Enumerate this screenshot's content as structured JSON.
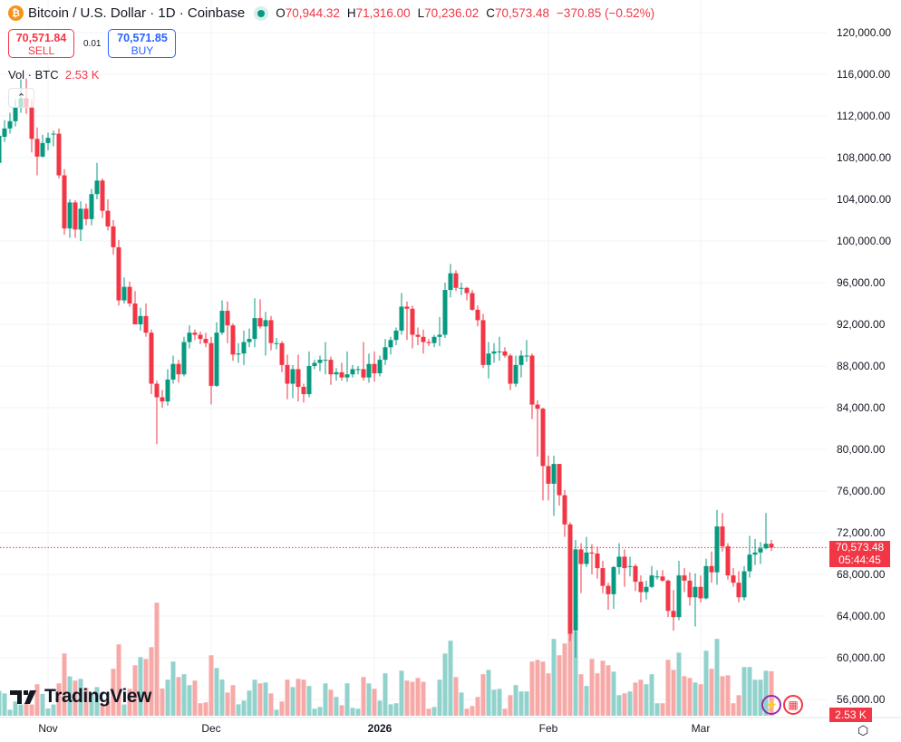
{
  "header": {
    "symbol_icon": "bitcoin-icon",
    "title": "Bitcoin / U.S. Dollar · 1D · Coinbase",
    "market_status": "open",
    "o_label": "O",
    "o": "70,944.32",
    "h_label": "H",
    "h": "71,316.00",
    "l_label": "L",
    "l": "70,236.02",
    "c_label": "C",
    "c": "70,573.48",
    "change": "−370.85 (−0.52%)"
  },
  "trade": {
    "sell_price": "70,571.84",
    "sell_label": "SELL",
    "spread": "0.01",
    "buy_price": "70,571.85",
    "buy_label": "BUY"
  },
  "volume_legend": {
    "label": "Vol · BTC",
    "value": "2.53 K"
  },
  "price_axis": {
    "labels": [
      "120,000.00",
      "116,000.00",
      "112,000.00",
      "108,000.00",
      "104,000.00",
      "100,000.00",
      "96,000.00",
      "92,000.00",
      "88,000.00",
      "84,000.00",
      "80,000.00",
      "76,000.00",
      "72,000.00",
      "68,000.00",
      "64,000.00",
      "60,000.00",
      "56,000.00"
    ],
    "current_price": "70,573.48",
    "countdown": "05:44:45",
    "volume_tag": "2.53 K"
  },
  "time_axis": {
    "labels": [
      "Nov",
      "Dec",
      "2026",
      "Feb",
      "Mar"
    ]
  },
  "brand": "TradingView",
  "colors": {
    "up": "#089981",
    "down": "#f23645",
    "up_volume": "#92d2cc",
    "down_volume": "#f7a9a7"
  },
  "chart_data": {
    "type": "candlestick",
    "interval": "1D",
    "ylim": [
      54000,
      122000
    ],
    "current_price": 70573.48,
    "ohlc": [
      [
        107.5,
        110.8,
        106.5,
        110.1
      ],
      [
        110.0,
        111.6,
        109.5,
        110.8
      ],
      [
        110.8,
        112.3,
        110.3,
        111.5
      ],
      [
        111.5,
        113.6,
        111.0,
        112.8
      ],
      [
        112.8,
        115.5,
        112.3,
        113.7
      ],
      [
        113.7,
        115.6,
        112.2,
        112.8
      ],
      [
        112.8,
        113.6,
        108.5,
        109.8
      ],
      [
        109.8,
        110.9,
        106.3,
        108.1
      ],
      [
        108.1,
        110.2,
        108.0,
        109.4
      ],
      [
        109.4,
        110.4,
        108.7,
        109.9
      ],
      [
        110.3,
        110.6,
        109.1,
        110.3
      ],
      [
        110.3,
        110.8,
        106.0,
        106.3
      ],
      [
        106.3,
        106.9,
        100.6,
        101.2
      ],
      [
        101.2,
        104.0,
        100.3,
        103.7
      ],
      [
        103.7,
        103.9,
        100.3,
        101.1
      ],
      [
        101.1,
        103.8,
        100.0,
        103.1
      ],
      [
        103.1,
        103.6,
        101.5,
        102.1
      ],
      [
        102.1,
        105.0,
        101.5,
        104.5
      ],
      [
        104.5,
        107.5,
        104.0,
        105.8
      ],
      [
        105.8,
        106.0,
        102.2,
        102.9
      ],
      [
        102.9,
        104.0,
        101.0,
        101.4
      ],
      [
        101.4,
        102.0,
        98.7,
        99.4
      ],
      [
        99.4,
        100.1,
        93.8,
        94.3
      ],
      [
        94.3,
        96.5,
        94.0,
        95.6
      ],
      [
        95.6,
        96.1,
        93.7,
        94.0
      ],
      [
        94.0,
        95.2,
        92.0,
        92.0
      ],
      [
        92.0,
        93.6,
        91.4,
        92.8
      ],
      [
        92.8,
        94.0,
        90.8,
        91.2
      ],
      [
        91.2,
        91.5,
        85.3,
        86.3
      ],
      [
        86.3,
        86.6,
        80.5,
        85.0
      ],
      [
        85.0,
        85.7,
        84.0,
        84.6
      ],
      [
        84.6,
        87.7,
        84.2,
        86.7
      ],
      [
        86.7,
        89.0,
        86.3,
        88.2
      ],
      [
        88.2,
        88.6,
        86.4,
        87.2
      ],
      [
        87.2,
        90.8,
        87.0,
        90.3
      ],
      [
        90.3,
        91.9,
        89.7,
        91.2
      ],
      [
        91.2,
        91.5,
        90.5,
        91.0
      ],
      [
        91.0,
        91.3,
        90.1,
        90.6
      ],
      [
        90.6,
        91.2,
        89.8,
        90.2
      ],
      [
        90.2,
        90.8,
        84.3,
        86.1
      ],
      [
        86.1,
        92.2,
        86.0,
        91.2
      ],
      [
        91.2,
        94.3,
        91.0,
        93.3
      ],
      [
        93.3,
        94.2,
        90.2,
        91.9
      ],
      [
        91.9,
        92.1,
        88.5,
        89.1
      ],
      [
        89.1,
        90.2,
        88.3,
        89.2
      ],
      [
        89.2,
        91.4,
        88.1,
        90.3
      ],
      [
        90.3,
        91.6,
        89.8,
        90.6
      ],
      [
        90.6,
        94.5,
        89.8,
        92.6
      ],
      [
        92.6,
        94.4,
        91.6,
        91.8
      ],
      [
        91.8,
        93.2,
        89.0,
        92.4
      ],
      [
        92.4,
        92.8,
        89.5,
        90.2
      ],
      [
        90.2,
        90.7,
        89.6,
        90.2
      ],
      [
        90.2,
        90.4,
        87.4,
        88.1
      ],
      [
        88.1,
        89.1,
        84.8,
        86.3
      ],
      [
        86.3,
        88.1,
        84.9,
        87.7
      ],
      [
        87.7,
        89.1,
        84.6,
        86.0
      ],
      [
        86.0,
        86.3,
        84.5,
        85.3
      ],
      [
        85.3,
        89.4,
        85.0,
        88.0
      ],
      [
        88.0,
        88.6,
        87.7,
        88.3
      ],
      [
        88.3,
        89.0,
        87.5,
        88.6
      ],
      [
        88.6,
        90.3,
        87.2,
        88.6
      ],
      [
        88.6,
        88.9,
        86.2,
        87.2
      ],
      [
        87.2,
        87.8,
        86.6,
        87.4
      ],
      [
        87.4,
        88.3,
        86.6,
        86.9
      ],
      [
        86.9,
        89.4,
        86.5,
        87.2
      ],
      [
        87.2,
        88.1,
        86.9,
        87.7
      ],
      [
        87.7,
        88.0,
        87.2,
        87.7
      ],
      [
        87.7,
        90.3,
        86.6,
        86.9
      ],
      [
        86.9,
        89.2,
        86.4,
        88.2
      ],
      [
        88.2,
        89.4,
        86.5,
        87.3
      ],
      [
        87.3,
        89.0,
        87.0,
        88.6
      ],
      [
        88.6,
        90.6,
        88.1,
        89.8
      ],
      [
        89.8,
        90.8,
        89.1,
        90.5
      ],
      [
        90.5,
        91.7,
        90.0,
        91.4
      ],
      [
        91.4,
        95.0,
        91.0,
        93.7
      ],
      [
        93.7,
        94.2,
        90.5,
        93.5
      ],
      [
        93.5,
        93.8,
        89.7,
        91.0
      ],
      [
        91.0,
        91.7,
        90.0,
        90.8
      ],
      [
        90.8,
        91.5,
        89.2,
        90.3
      ],
      [
        90.3,
        90.6,
        89.9,
        90.2
      ],
      [
        90.2,
        91.0,
        89.8,
        90.8
      ],
      [
        90.8,
        92.7,
        89.9,
        91.0
      ],
      [
        91.0,
        96.0,
        90.7,
        95.3
      ],
      [
        95.3,
        97.8,
        94.6,
        96.9
      ],
      [
        96.9,
        97.2,
        95.2,
        95.5
      ],
      [
        95.5,
        96.0,
        94.8,
        95.5
      ],
      [
        95.5,
        95.6,
        94.3,
        95.0
      ],
      [
        95.0,
        95.3,
        93.3,
        93.4
      ],
      [
        93.4,
        93.8,
        91.8,
        92.4
      ],
      [
        92.4,
        93.0,
        87.8,
        88.1
      ],
      [
        88.1,
        90.3,
        86.8,
        89.2
      ],
      [
        89.2,
        90.2,
        88.3,
        89.4
      ],
      [
        89.4,
        90.8,
        88.5,
        89.4
      ],
      [
        89.4,
        89.8,
        88.8,
        89.0
      ],
      [
        89.0,
        89.2,
        85.7,
        86.3
      ],
      [
        86.3,
        89.0,
        86.0,
        88.1
      ],
      [
        88.1,
        89.5,
        86.9,
        89.0
      ],
      [
        89.0,
        90.5,
        88.4,
        89.0
      ],
      [
        89.0,
        89.2,
        82.9,
        84.3
      ],
      [
        84.3,
        84.7,
        79.3,
        83.9
      ],
      [
        83.9,
        84.0,
        75.1,
        78.4
      ],
      [
        78.4,
        79.4,
        75.1,
        76.7
      ],
      [
        76.7,
        79.4,
        73.6,
        78.6
      ],
      [
        78.6,
        78.6,
        74.6,
        75.6
      ],
      [
        75.6,
        76.1,
        71.6,
        72.8
      ],
      [
        72.8,
        73.0,
        61.6,
        62.3
      ],
      [
        62.6,
        71.3,
        60.0,
        70.4
      ],
      [
        70.4,
        71.0,
        66.2,
        69.0
      ],
      [
        69.0,
        71.6,
        68.7,
        70.1
      ],
      [
        70.1,
        70.9,
        68.0,
        70.0
      ],
      [
        70.0,
        70.7,
        67.6,
        68.6
      ],
      [
        68.6,
        69.3,
        66.2,
        66.9
      ],
      [
        66.9,
        67.2,
        64.6,
        66.1
      ],
      [
        66.1,
        68.8,
        64.7,
        68.7
      ],
      [
        68.7,
        71.0,
        68.0,
        69.7
      ],
      [
        69.7,
        70.4,
        66.8,
        68.6
      ],
      [
        68.8,
        69.7,
        67.8,
        68.8
      ],
      [
        68.8,
        69.0,
        66.4,
        67.3
      ],
      [
        67.3,
        67.9,
        65.3,
        66.3
      ],
      [
        66.3,
        67.4,
        65.6,
        66.8
      ],
      [
        66.8,
        68.8,
        66.7,
        67.9
      ],
      [
        67.8,
        68.4,
        67.5,
        67.8
      ],
      [
        67.8,
        68.4,
        67.3,
        67.4
      ],
      [
        67.4,
        67.5,
        63.9,
        64.5
      ],
      [
        64.5,
        66.5,
        62.6,
        63.9
      ],
      [
        63.9,
        69.3,
        63.6,
        67.9
      ],
      [
        67.9,
        68.6,
        66.3,
        67.4
      ],
      [
        67.4,
        68.2,
        65.0,
        65.8
      ],
      [
        65.8,
        68.1,
        63.0,
        66.8
      ],
      [
        66.8,
        67.9,
        65.3,
        65.7
      ],
      [
        65.7,
        69.5,
        65.6,
        68.8
      ],
      [
        68.8,
        70.2,
        67.2,
        68.2
      ],
      [
        68.2,
        74.2,
        67.0,
        72.6
      ],
      [
        72.6,
        73.9,
        70.2,
        70.7
      ],
      [
        70.7,
        71.0,
        67.5,
        67.9
      ],
      [
        67.9,
        68.6,
        66.8,
        67.2
      ],
      [
        67.2,
        68.3,
        65.3,
        65.8
      ],
      [
        65.8,
        68.8,
        65.5,
        68.3
      ],
      [
        68.3,
        71.7,
        67.7,
        69.9
      ],
      [
        69.9,
        71.4,
        68.9,
        70.1
      ],
      [
        70.1,
        71.1,
        69.0,
        70.5
      ],
      [
        70.5,
        73.9,
        70.4,
        70.94
      ],
      [
        70.944,
        71.316,
        70.236,
        70.573
      ]
    ],
    "ohlc_unit": "thousand USD",
    "volume_k": [
      1.41,
      1.27,
      0.34,
      0.81,
      0.64,
      0.72,
      0.64,
      1.79,
      1.24,
      0.41,
      0.64,
      1.84,
      3.54,
      2.24,
      2.0,
      2.1,
      1.58,
      1.24,
      1.63,
      0.64,
      0.81,
      2.67,
      4.06,
      0.64,
      1.53,
      2.87,
      3.34,
      3.23,
      3.9,
      6.43,
      1.55,
      2.05,
      3.08,
      2.2,
      2.36,
      1.74,
      2.0,
      0.71,
      0.76,
      3.44,
      2.72,
      2.06,
      1.32,
      1.74,
      0.65,
      0.86,
      1.43,
      2.05,
      1.84,
      1.89,
      1.27,
      0.34,
      0.81,
      2.05,
      1.63,
      2.1,
      2.05,
      1.69,
      0.4,
      0.5,
      1.84,
      1.48,
      1.07,
      0.6,
      1.84,
      0.45,
      0.4,
      2.2,
      1.84,
      1.53,
      0.86,
      2.41,
      0.65,
      0.71,
      2.56,
      2.0,
      1.93,
      2.15,
      1.93,
      0.4,
      0.5,
      2.05,
      3.54,
      4.27,
      2.2,
      1.32,
      0.4,
      0.55,
      1.07,
      2.36,
      2.61,
      1.48,
      1.53,
      0.4,
      1.17,
      1.74,
      1.38,
      1.38,
      3.08,
      3.18,
      3.08,
      2.41,
      4.37,
      3.44,
      4.11,
      5.02,
      4.8,
      2.36,
      1.69,
      3.23,
      2.41,
      3.13,
      2.87,
      2.51,
      1.17,
      1.27,
      1.38,
      1.89,
      2.05,
      1.79,
      2.36,
      0.71,
      0.71,
      3.18,
      2.61,
      3.59,
      2.25,
      2.15,
      1.89,
      1.79,
      3.7,
      2.67,
      4.37,
      2.25,
      2.3,
      0.71,
      1.17,
      2.77,
      2.77,
      2.05,
      2.05,
      2.56,
      2.53
    ]
  }
}
